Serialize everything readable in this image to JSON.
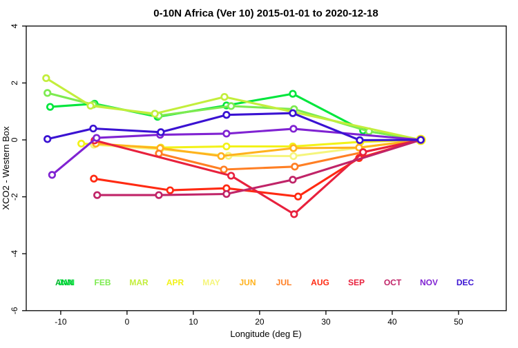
{
  "title": "0-10N Africa (Ver 10)   2015-01-01 to 2020-12-18",
  "chart_data": {
    "type": "line",
    "title": "0-10N Africa (Ver 10)   2015-01-01 to 2020-12-18",
    "xlabel": "Longitude (deg E)",
    "ylabel": "XCO2 - Western Box",
    "xlim": [
      -15.2,
      57.2
    ],
    "ylim": [
      -6,
      4
    ],
    "x_ticks": [
      -10,
      0,
      10,
      20,
      30,
      40,
      50
    ],
    "y_ticks": [
      4,
      2,
      0,
      -2,
      -4,
      -6
    ],
    "grid": false,
    "marker": "open-circle",
    "legend_position": "inside-bottom",
    "annual_label": {
      "label": "ANN",
      "color": "#00b42d"
    },
    "series": [
      {
        "name": "JAN",
        "color": "#00e63c",
        "points": [
          [
            -11.6,
            1.16
          ],
          [
            -4.9,
            1.27
          ],
          [
            4.6,
            0.81
          ],
          [
            15.0,
            1.21
          ],
          [
            25.0,
            1.62
          ],
          [
            35.6,
            0.33
          ],
          [
            44.3,
            0.0
          ]
        ]
      },
      {
        "name": "FEB",
        "color": "#7deb50",
        "points": [
          [
            -12.0,
            1.65
          ],
          [
            -5.1,
            1.24
          ],
          [
            4.8,
            0.85
          ],
          [
            15.7,
            1.19
          ],
          [
            25.2,
            1.08
          ],
          [
            36.5,
            0.3
          ],
          [
            44.3,
            0.0
          ]
        ]
      },
      {
        "name": "MAR",
        "color": "#c3ee3c",
        "points": [
          [
            -12.2,
            2.17
          ],
          [
            -5.5,
            1.2
          ],
          [
            4.2,
            0.92
          ],
          [
            14.7,
            1.51
          ],
          [
            44.3,
            0.0
          ]
        ]
      },
      {
        "name": "APR",
        "color": "#f2f218",
        "points": [
          [
            -6.9,
            -0.13
          ],
          [
            5.1,
            -0.27
          ],
          [
            15.0,
            -0.23
          ],
          [
            25.0,
            -0.23
          ],
          [
            35.2,
            -0.07
          ],
          [
            44.3,
            0.0
          ]
        ]
      },
      {
        "name": "MAY",
        "color": "#f5f57d",
        "points": [
          [
            -5.0,
            -0.17
          ],
          [
            5.0,
            -0.33
          ],
          [
            15.3,
            -0.56
          ],
          [
            25.1,
            -0.57
          ],
          [
            44.3,
            0.0
          ]
        ]
      },
      {
        "name": "JUN",
        "color": "#ffb21e",
        "points": [
          [
            -4.7,
            -0.13
          ],
          [
            5.0,
            -0.29
          ],
          [
            14.2,
            -0.57
          ],
          [
            25.1,
            -0.29
          ],
          [
            35.0,
            -0.27
          ],
          [
            44.3,
            0.0
          ]
        ]
      },
      {
        "name": "JUL",
        "color": "#ff7f24",
        "points": [
          [
            4.8,
            -0.48
          ],
          [
            14.6,
            -1.04
          ],
          [
            25.3,
            -0.94
          ],
          [
            44.3,
            0.0
          ]
        ]
      },
      {
        "name": "AUG",
        "color": "#ff2a12",
        "points": [
          [
            -5.0,
            -1.36
          ],
          [
            6.5,
            -1.77
          ],
          [
            15.0,
            -1.7
          ],
          [
            25.8,
            -1.99
          ],
          [
            35.0,
            -0.64
          ],
          [
            44.3,
            0.0
          ]
        ]
      },
      {
        "name": "SEP",
        "color": "#e8213d",
        "points": [
          [
            -4.9,
            -0.02
          ],
          [
            15.7,
            -1.26
          ],
          [
            25.2,
            -2.61
          ],
          [
            35.6,
            -0.43
          ],
          [
            44.3,
            0.0
          ]
        ]
      },
      {
        "name": "OCT",
        "color": "#c02468",
        "points": [
          [
            -4.5,
            -1.94
          ],
          [
            4.8,
            -1.94
          ],
          [
            15.0,
            -1.9
          ],
          [
            25.0,
            -1.4
          ],
          [
            44.3,
            0.0
          ]
        ]
      },
      {
        "name": "NOV",
        "color": "#8023d2",
        "points": [
          [
            -11.3,
            -1.23
          ],
          [
            -4.6,
            0.07
          ],
          [
            5.0,
            0.18
          ],
          [
            15.0,
            0.22
          ],
          [
            25.1,
            0.39
          ],
          [
            44.3,
            0.0
          ]
        ]
      },
      {
        "name": "DEC",
        "color": "#3a12d2",
        "points": [
          [
            -12.0,
            0.03
          ],
          [
            -5.1,
            0.4
          ],
          [
            5.1,
            0.27
          ],
          [
            15.0,
            0.88
          ],
          [
            25.0,
            0.94
          ],
          [
            35.1,
            -0.01
          ],
          [
            44.3,
            0.0
          ]
        ]
      }
    ]
  }
}
